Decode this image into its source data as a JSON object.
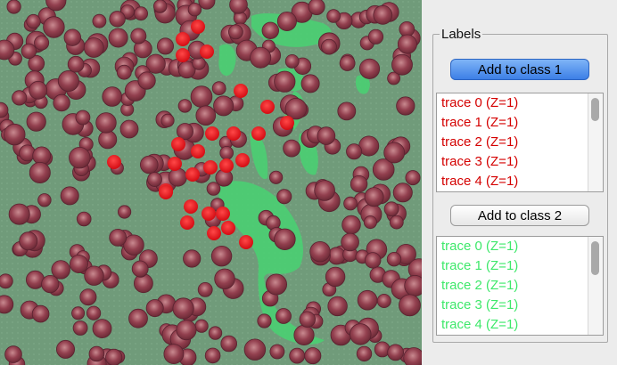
{
  "panel": {
    "group_title": "Labels",
    "class1_button": "Add to class 1",
    "class2_button": "Add to class 2",
    "class1_color": "#d40000",
    "class2_color": "#3ee86a",
    "class1_traces": [
      "trace 0 (Z=1)",
      "trace 1 (Z=1)",
      "trace 2 (Z=1)",
      "trace 3 (Z=1)",
      "trace 4 (Z=1)"
    ],
    "class2_traces": [
      "trace 0 (Z=1)",
      "trace 1 (Z=1)",
      "trace 2 (Z=1)",
      "trace 3 (Z=1)",
      "trace 4 (Z=1)"
    ]
  },
  "viewer": {
    "background_color": "#6f9a79",
    "cell_color": "#8a3a4a",
    "class1_mark_color": "#e8141c",
    "class2_mark_color": "#48d272"
  }
}
